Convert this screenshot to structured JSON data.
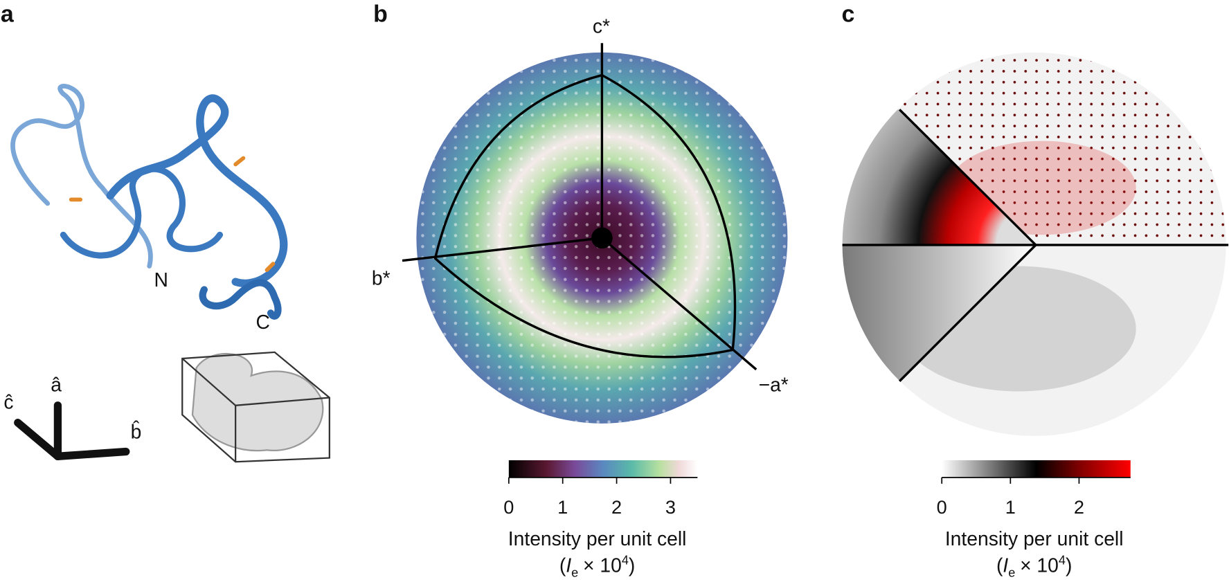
{
  "panels": [
    {
      "label": "a",
      "termini": [
        "N",
        "C"
      ],
      "axes": [
        "ĉ",
        "â",
        "b̂"
      ]
    },
    {
      "label": "b",
      "axes": [
        "c*",
        "b*",
        "−a*"
      ],
      "colorbar": {
        "range": [
          0,
          3.5
        ],
        "ticks": [
          0,
          1,
          2,
          3
        ],
        "title": "Intensity per unit cell",
        "unit": {
          "open": "(",
          "symbol": "I",
          "subscript": "e",
          "operator": "× 10",
          "exponent": "4",
          "close": ")"
        }
      }
    },
    {
      "label": "c",
      "colorbar": {
        "range": [
          0,
          2.75
        ],
        "ticks": [
          0,
          1,
          2
        ],
        "title": "Intensity per unit cell",
        "unit": {
          "open": "(",
          "symbol": "I",
          "subscript": "e",
          "operator": "× 10",
          "exponent": "4",
          "close": ")"
        }
      }
    }
  ]
}
